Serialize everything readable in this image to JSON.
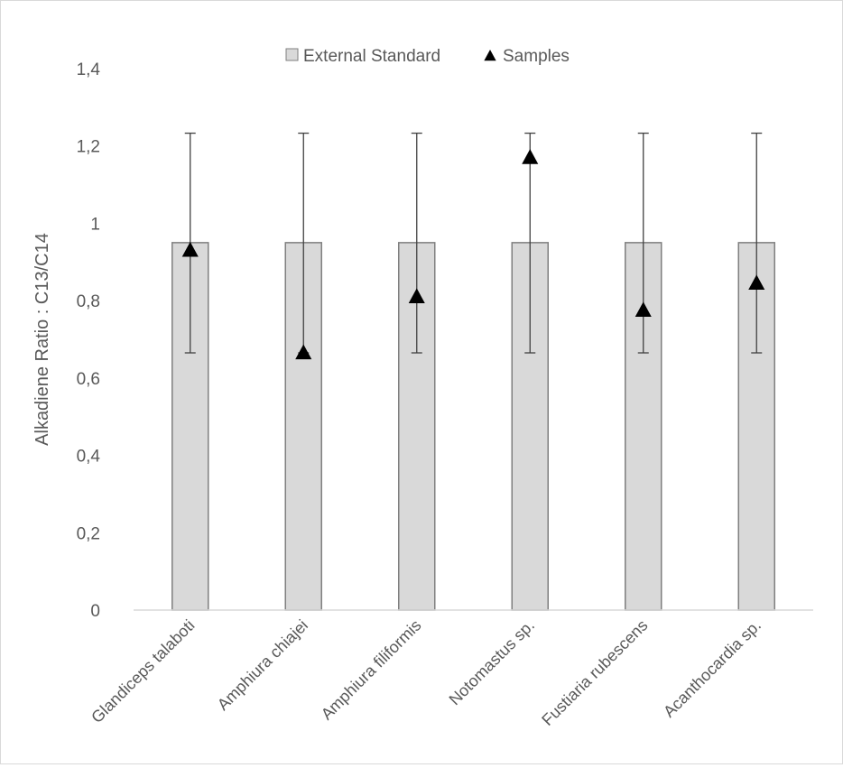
{
  "chart_data": {
    "type": "bar",
    "categories": [
      "Glandiceps talaboti",
      "Amphiura chiajei",
      "Amphiura filiformis",
      "Notomastus sp.",
      "Fustiaria rubescens",
      "Acanthocardia sp."
    ],
    "series": [
      {
        "name": "External Standard",
        "kind": "bar",
        "values": [
          0.95,
          0.95,
          0.95,
          0.95,
          0.95,
          0.95
        ],
        "error_low": [
          0.665,
          0.665,
          0.665,
          0.665,
          0.665,
          0.665
        ],
        "error_high": [
          1.233,
          1.233,
          1.233,
          1.233,
          1.233,
          1.233
        ],
        "color": "#d9d9d9"
      },
      {
        "name": "Samples",
        "kind": "marker-triangle",
        "values": [
          0.93,
          0.665,
          0.81,
          1.17,
          0.775,
          0.845
        ],
        "color": "#000000"
      }
    ],
    "ylabel": "Alkadiene Ratio : C13/C14",
    "xlabel": "",
    "ylim": [
      0,
      1.4
    ],
    "yticks": [
      "0",
      "0,2",
      "0,4",
      "0,6",
      "0,8",
      "1",
      "1,2",
      "1,4"
    ],
    "legend_position": "top",
    "grid": false
  }
}
